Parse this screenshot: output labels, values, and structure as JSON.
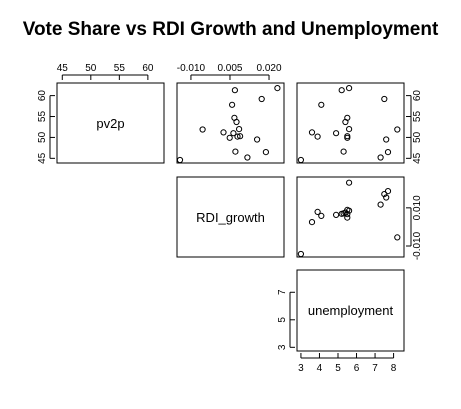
{
  "chart_data": {
    "type": "scatter",
    "title": "Vote Share vs RDI Growth and Unemployment",
    "variables": [
      "pv2p",
      "RDI_growth",
      "unemployment"
    ],
    "tick_labels": {
      "pv2p_top": [
        "45",
        "50",
        "55",
        "60"
      ],
      "pv2p_right": [
        "45",
        "50",
        "55",
        "60"
      ],
      "pv2p_left": [
        "45",
        "50",
        "55",
        "60"
      ],
      "rdi_top": [
        "-0.010",
        "0.005",
        "0.020"
      ],
      "rdi_right": [
        "-0.010",
        "0.010"
      ],
      "unemp_left": [
        "3",
        "5",
        "7"
      ],
      "unemp_bottom": [
        "3",
        "4",
        "5",
        "6",
        "7",
        "8"
      ]
    },
    "axis_ranges": {
      "pv2p": [
        44.6,
        62.3
      ],
      "RDI_growth": [
        -0.0142,
        0.0246
      ],
      "unemployment": [
        2.95,
        8.4
      ]
    },
    "grid": false,
    "legend": "none",
    "points": [
      {
        "pv2p": 44.6,
        "RDI_growth": -0.0142,
        "unemployment": 3.0
      },
      {
        "pv2p": 51.2,
        "RDI_growth": 0.0025,
        "unemployment": 3.6
      },
      {
        "pv2p": 50.2,
        "RDI_growth": 0.0079,
        "unemployment": 3.9
      },
      {
        "pv2p": 57.8,
        "RDI_growth": 0.0058,
        "unemployment": 4.1
      },
      {
        "pv2p": 49.9,
        "RDI_growth": 0.0049,
        "unemployment": 5.5
      },
      {
        "pv2p": 51.0,
        "RDI_growth": 0.0063,
        "unemployment": 4.9
      },
      {
        "pv2p": 46.6,
        "RDI_growth": 0.0071,
        "unemployment": 5.3
      },
      {
        "pv2p": 54.7,
        "RDI_growth": 0.0067,
        "unemployment": 5.5
      },
      {
        "pv2p": 53.7,
        "RDI_growth": 0.0075,
        "unemployment": 5.4
      },
      {
        "pv2p": 61.3,
        "RDI_growth": 0.0069,
        "unemployment": 5.2
      },
      {
        "pv2p": 52.0,
        "RDI_growth": 0.0085,
        "unemployment": 5.6
      },
      {
        "pv2p": 50.3,
        "RDI_growth": 0.0089,
        "unemployment": 5.5
      },
      {
        "pv2p": 61.8,
        "RDI_growth": 0.0232,
        "unemployment": 5.6
      },
      {
        "pv2p": 59.2,
        "RDI_growth": 0.0172,
        "unemployment": 7.5
      },
      {
        "pv2p": 49.5,
        "RDI_growth": 0.0154,
        "unemployment": 7.6
      },
      {
        "pv2p": 45.2,
        "RDI_growth": 0.0117,
        "unemployment": 7.3
      },
      {
        "pv2p": 46.5,
        "RDI_growth": 0.0188,
        "unemployment": 7.7
      },
      {
        "pv2p": 51.9,
        "RDI_growth": -0.0055,
        "unemployment": 8.2
      }
    ]
  }
}
